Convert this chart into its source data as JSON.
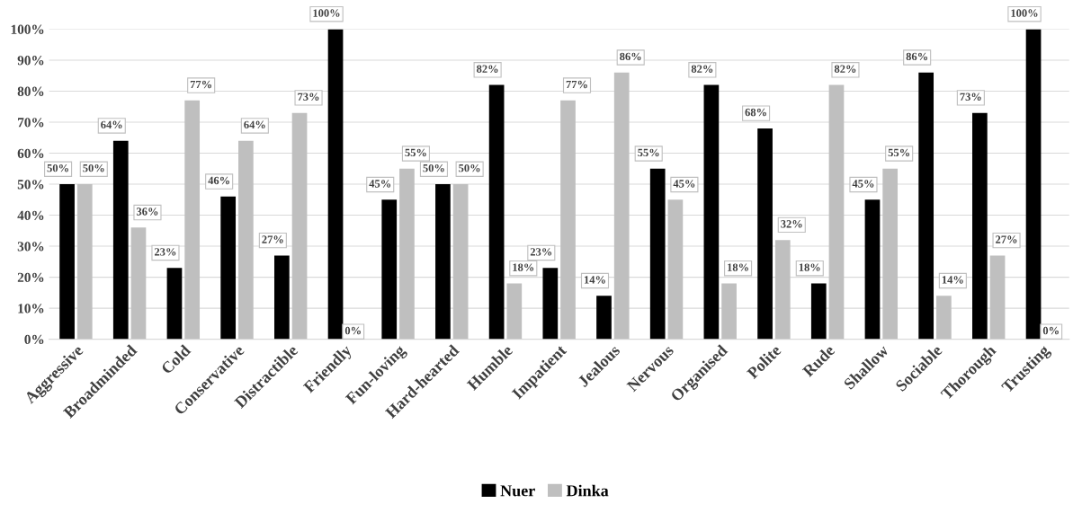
{
  "chart_data": {
    "type": "bar",
    "categories": [
      "Aggressive",
      "Broadminded",
      "Cold",
      "Conservative",
      "Distractible",
      "Friendly",
      "Fun-loving",
      "Hard-hearted",
      "Humble",
      "Impatient",
      "Jealous",
      "Nervous",
      "Organised",
      "Polite",
      "Rude",
      "Shallow",
      "Sociable",
      "Thorough",
      "Trusting"
    ],
    "series": [
      {
        "name": "Nuer",
        "color": "#000000",
        "values": [
          50,
          64,
          23,
          46,
          27,
          100,
          45,
          50,
          82,
          23,
          14,
          55,
          82,
          68,
          18,
          45,
          86,
          73,
          100
        ],
        "value_labels": [
          "50%",
          "64%",
          "23%",
          "46%",
          "27%",
          "100%",
          "45%",
          "50%",
          "82%",
          "23%",
          "14%",
          "55%",
          "82%",
          "68%",
          "18%",
          "45%",
          "86%",
          "73%",
          "100%"
        ]
      },
      {
        "name": "Dinka",
        "color": "#bfbfbf",
        "values": [
          50,
          36,
          77,
          64,
          73,
          0,
          55,
          50,
          18,
          77,
          86,
          45,
          18,
          32,
          82,
          55,
          14,
          27,
          0
        ],
        "value_labels": [
          "50%",
          "36%",
          "77%",
          "64%",
          "73%",
          "0%",
          "55%",
          "50%",
          "18%",
          "77%",
          "86%",
          "45%",
          "18%",
          "32%",
          "82%",
          "55%",
          "14%",
          "27%",
          "0%"
        ]
      }
    ],
    "ylim": [
      0,
      100
    ],
    "yticks": [
      {
        "value": 0,
        "label": "0%"
      },
      {
        "value": 10,
        "label": "10%"
      },
      {
        "value": 20,
        "label": "20%"
      },
      {
        "value": 30,
        "label": "30%"
      },
      {
        "value": 40,
        "label": "40%"
      },
      {
        "value": 50,
        "label": "50%"
      },
      {
        "value": 60,
        "label": "60%"
      },
      {
        "value": 70,
        "label": "70%"
      },
      {
        "value": 80,
        "label": "80%"
      },
      {
        "value": 90,
        "label": "90%"
      },
      {
        "value": 100,
        "label": "100%"
      }
    ],
    "grid": "y",
    "legend": "bottom"
  }
}
